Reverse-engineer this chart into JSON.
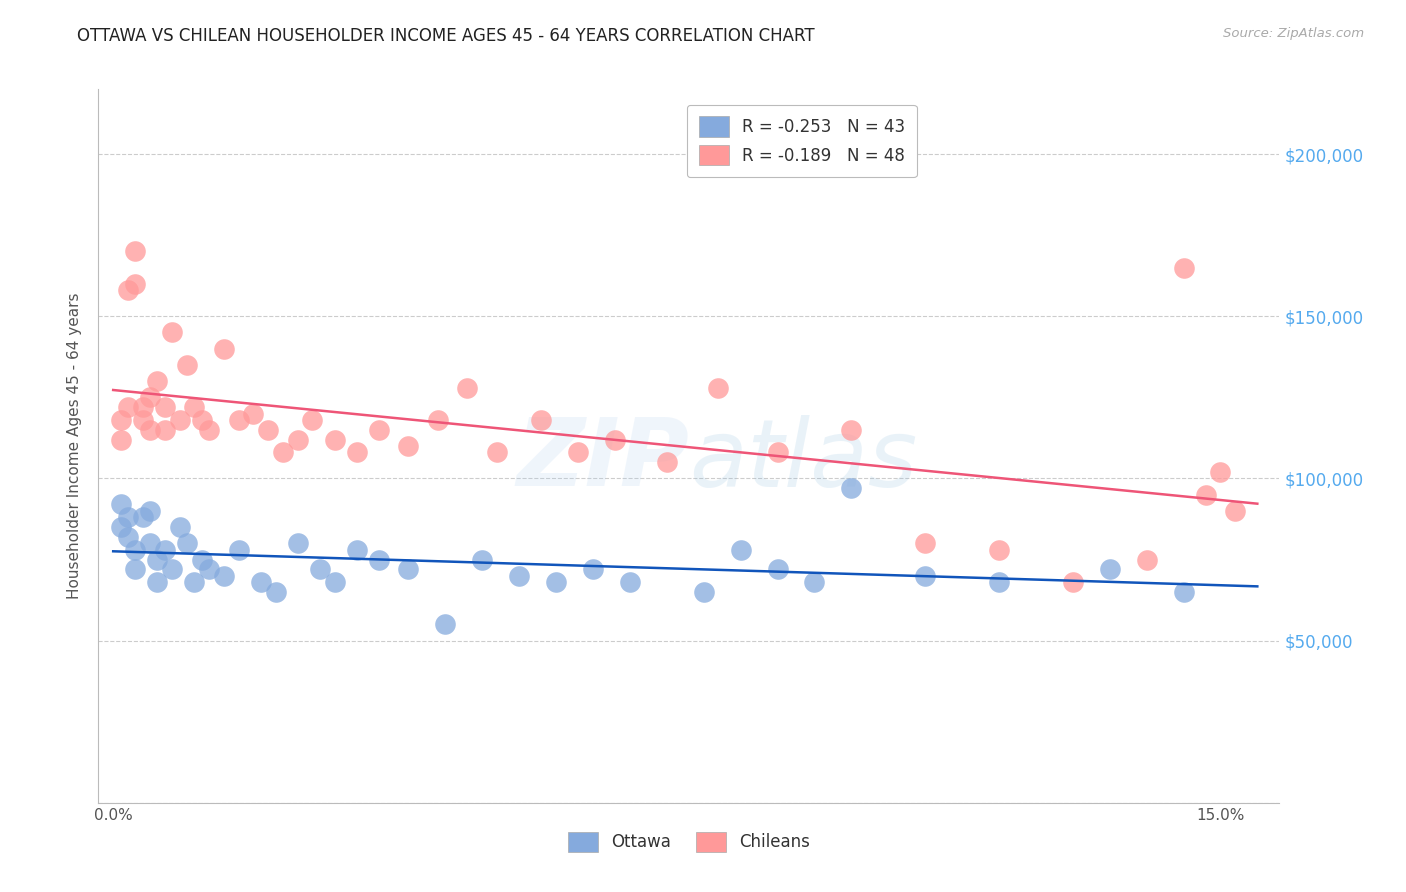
{
  "title": "OTTAWA VS CHILEAN HOUSEHOLDER INCOME AGES 45 - 64 YEARS CORRELATION CHART",
  "source": "Source: ZipAtlas.com",
  "ylabel": "Householder Income Ages 45 - 64 years",
  "ylim": [
    0,
    220000
  ],
  "xlim": [
    -0.002,
    0.158
  ],
  "yticks": [
    0,
    50000,
    100000,
    150000,
    200000
  ],
  "ytick_labels": [
    "",
    "$50,000",
    "$100,000",
    "$150,000",
    "$200,000"
  ],
  "xticks": [
    0.0,
    0.15
  ],
  "xlabels": [
    "0.0%",
    "15.0%"
  ],
  "ottawa_R": "-0.253",
  "ottawa_N": "43",
  "chilean_R": "-0.189",
  "chilean_N": "48",
  "ottawa_color": "#85AADD",
  "chilean_color": "#FF9999",
  "ottawa_line_color": "#1155BB",
  "chilean_line_color": "#EE5577",
  "background_color": "#FFFFFF",
  "grid_color": "#CCCCCC",
  "title_color": "#222222",
  "source_color": "#AAAAAA",
  "axis_label_color": "#555555",
  "ytick_label_color": "#55AAEE",
  "watermark_color": "#AACCEE",
  "ottawa_x": [
    0.001,
    0.001,
    0.002,
    0.002,
    0.003,
    0.003,
    0.004,
    0.005,
    0.005,
    0.006,
    0.006,
    0.007,
    0.008,
    0.009,
    0.01,
    0.011,
    0.012,
    0.013,
    0.015,
    0.017,
    0.02,
    0.022,
    0.025,
    0.028,
    0.03,
    0.033,
    0.036,
    0.04,
    0.045,
    0.05,
    0.055,
    0.06,
    0.065,
    0.07,
    0.08,
    0.085,
    0.09,
    0.095,
    0.1,
    0.11,
    0.12,
    0.135,
    0.145
  ],
  "ottawa_y": [
    92000,
    85000,
    88000,
    82000,
    78000,
    72000,
    88000,
    90000,
    80000,
    75000,
    68000,
    78000,
    72000,
    85000,
    80000,
    68000,
    75000,
    72000,
    70000,
    78000,
    68000,
    65000,
    80000,
    72000,
    68000,
    78000,
    75000,
    72000,
    55000,
    75000,
    70000,
    68000,
    72000,
    68000,
    65000,
    78000,
    72000,
    68000,
    97000,
    70000,
    68000,
    72000,
    65000
  ],
  "chilean_x": [
    0.001,
    0.001,
    0.002,
    0.002,
    0.003,
    0.003,
    0.004,
    0.004,
    0.005,
    0.005,
    0.006,
    0.007,
    0.007,
    0.008,
    0.009,
    0.01,
    0.011,
    0.012,
    0.013,
    0.015,
    0.017,
    0.019,
    0.021,
    0.023,
    0.025,
    0.027,
    0.03,
    0.033,
    0.036,
    0.04,
    0.044,
    0.048,
    0.052,
    0.058,
    0.063,
    0.068,
    0.075,
    0.082,
    0.09,
    0.1,
    0.11,
    0.12,
    0.13,
    0.14,
    0.145,
    0.148,
    0.15,
    0.152
  ],
  "chilean_y": [
    118000,
    112000,
    158000,
    122000,
    170000,
    160000,
    122000,
    118000,
    125000,
    115000,
    130000,
    122000,
    115000,
    145000,
    118000,
    135000,
    122000,
    118000,
    115000,
    140000,
    118000,
    120000,
    115000,
    108000,
    112000,
    118000,
    112000,
    108000,
    115000,
    110000,
    118000,
    128000,
    108000,
    118000,
    108000,
    112000,
    105000,
    128000,
    108000,
    115000,
    80000,
    78000,
    68000,
    75000,
    165000,
    95000,
    102000,
    90000
  ]
}
